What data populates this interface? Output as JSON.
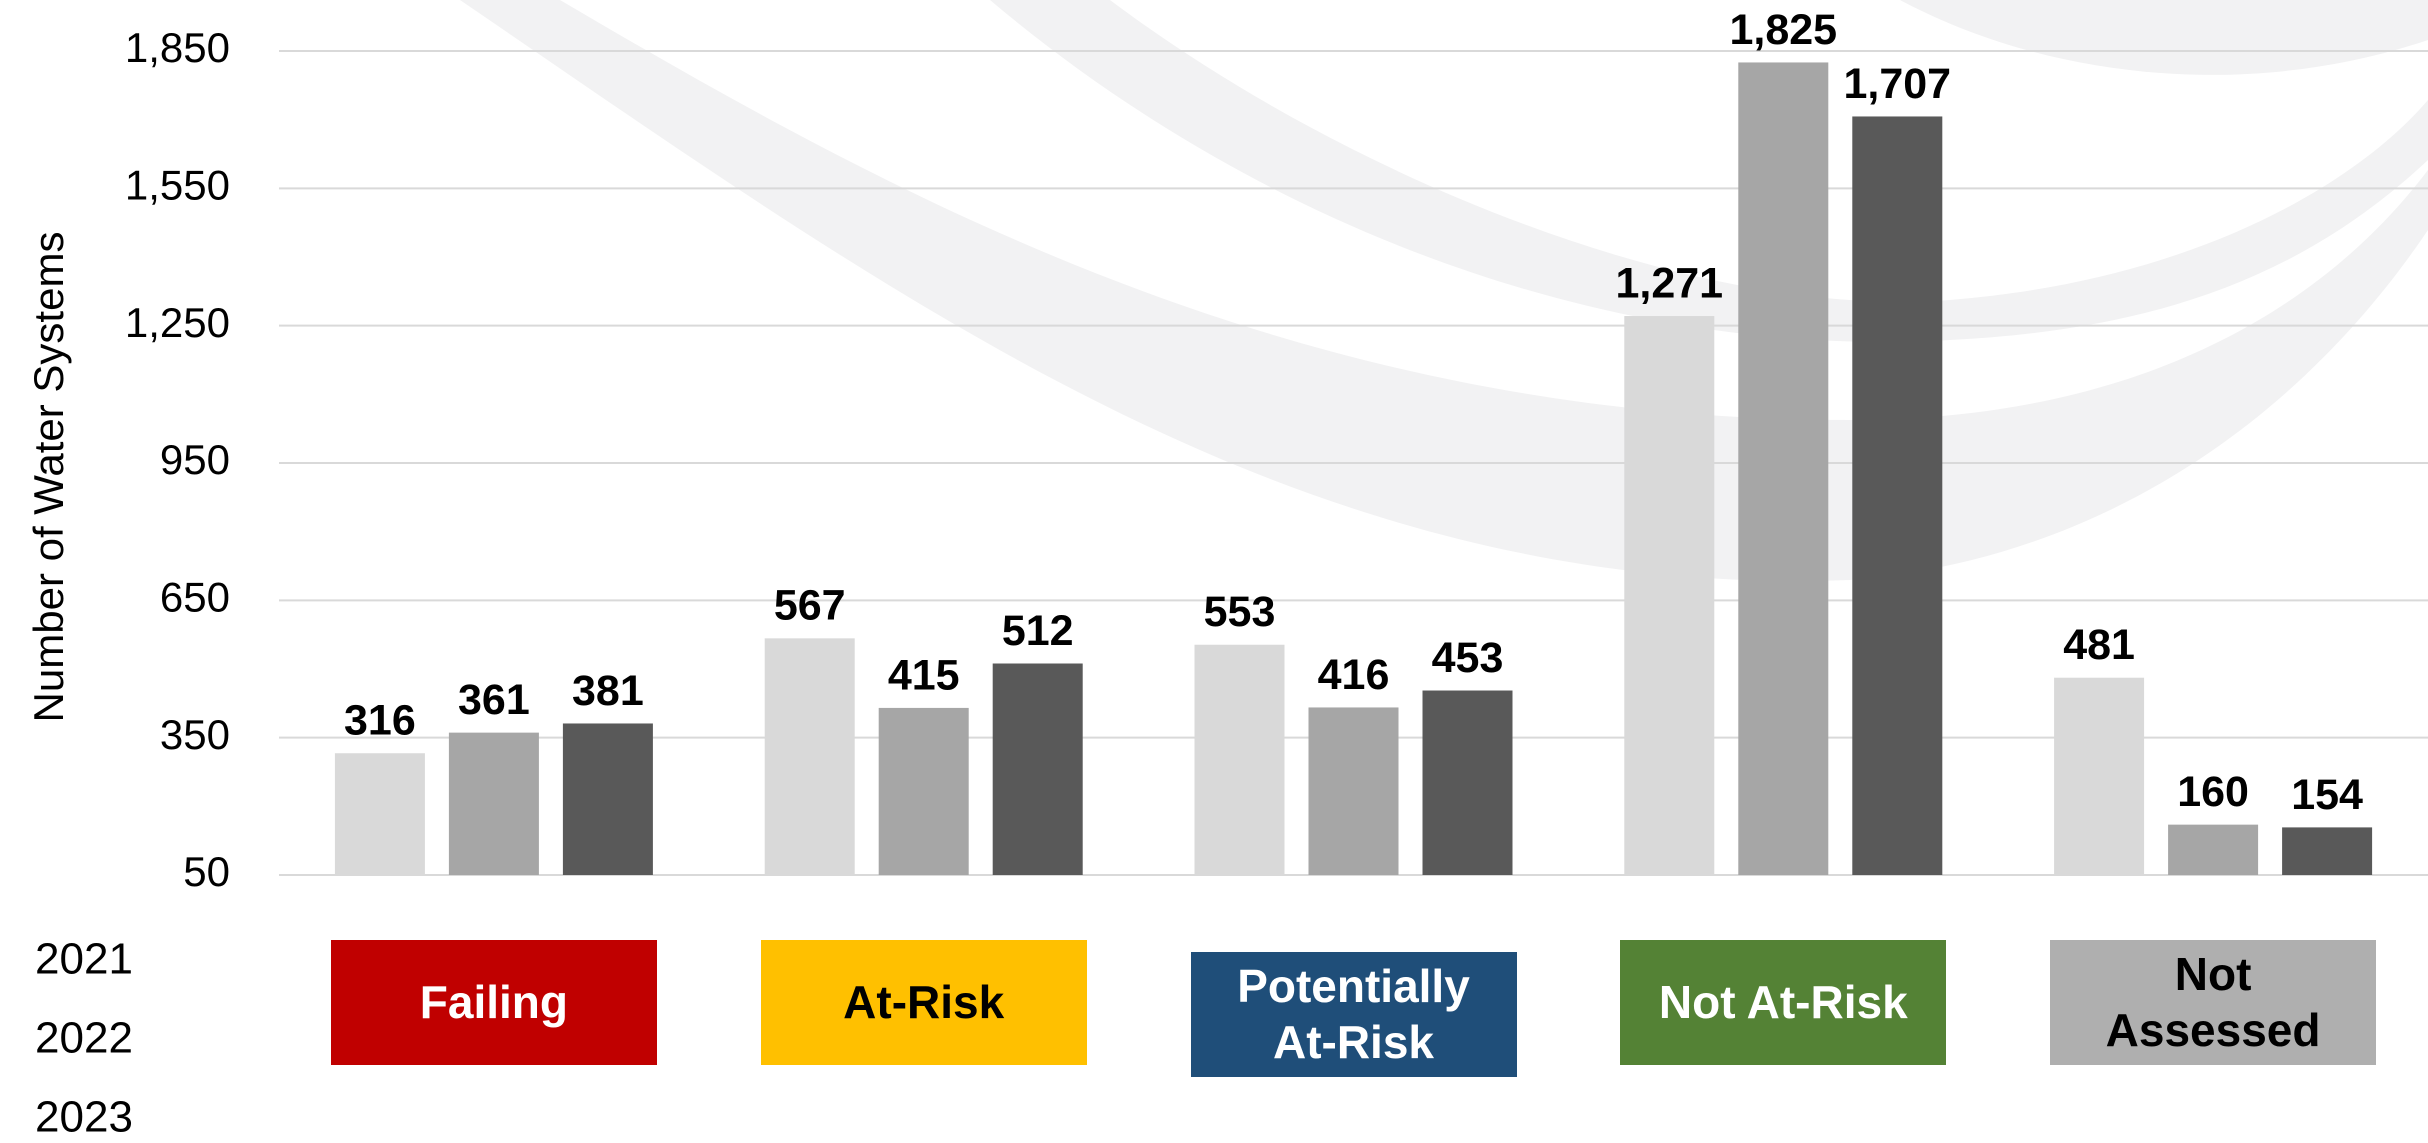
{
  "chart_data": {
    "type": "bar",
    "y_axis_label": "Number of Water Systems",
    "categories": [
      "Failing",
      "At-Risk",
      "Potentially At-Risk",
      "Not At-Risk",
      "Not Assessed"
    ],
    "category_colors": [
      "#c00000",
      "#ffc000",
      "#1f4e79",
      "#548235",
      "#afafaf"
    ],
    "series": [
      {
        "name": "2021",
        "color": "#d9d9d9",
        "values": [
          316,
          567,
          553,
          1271,
          481
        ],
        "value_labels": [
          "316",
          "567",
          "553",
          "1,271",
          "481"
        ]
      },
      {
        "name": "2022",
        "color": "#a6a6a6",
        "values": [
          361,
          415,
          416,
          1825,
          160
        ],
        "value_labels": [
          "361",
          "415",
          "416",
          "1,825",
          "160"
        ]
      },
      {
        "name": "2023",
        "color": "#595959",
        "values": [
          381,
          512,
          453,
          1707,
          154
        ],
        "value_labels": [
          "381",
          "512",
          "453",
          "1,707",
          "154"
        ]
      }
    ],
    "ylim": [
      50,
      1850
    ],
    "yticks": [
      50,
      350,
      650,
      950,
      {
        "value": 1250,
        "label": "1,250"
      },
      {
        "value": 1550,
        "label": "1,550"
      },
      {
        "value": 1850,
        "label": "1,850"
      }
    ],
    "grid": true
  }
}
